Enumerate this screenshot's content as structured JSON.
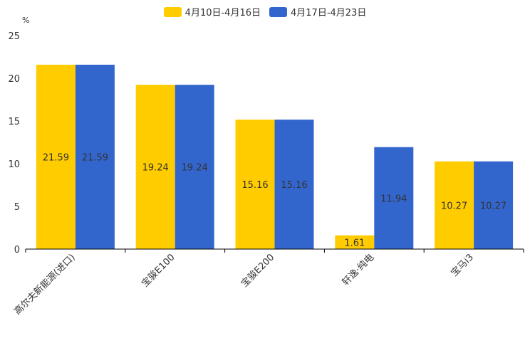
{
  "chart_data": {
    "type": "bar",
    "unit_label": "%",
    "categories": [
      "高尔夫新能源(进口)",
      "宝骏E100",
      "宝骏E200",
      "轩逸·纯电",
      "宝马i3"
    ],
    "series": [
      {
        "name": "4月10日-4月16日",
        "color": "#FFCC00",
        "values": [
          21.59,
          19.24,
          15.16,
          1.61,
          10.27
        ]
      },
      {
        "name": "4月17日-4月23日",
        "color": "#3366CC",
        "values": [
          21.59,
          19.24,
          15.16,
          11.94,
          10.27
        ]
      }
    ],
    "ylim": [
      0,
      25
    ],
    "yticks": [
      "0",
      "5",
      "10",
      "15",
      "20",
      "25"
    ],
    "legend_position": "top-center"
  }
}
